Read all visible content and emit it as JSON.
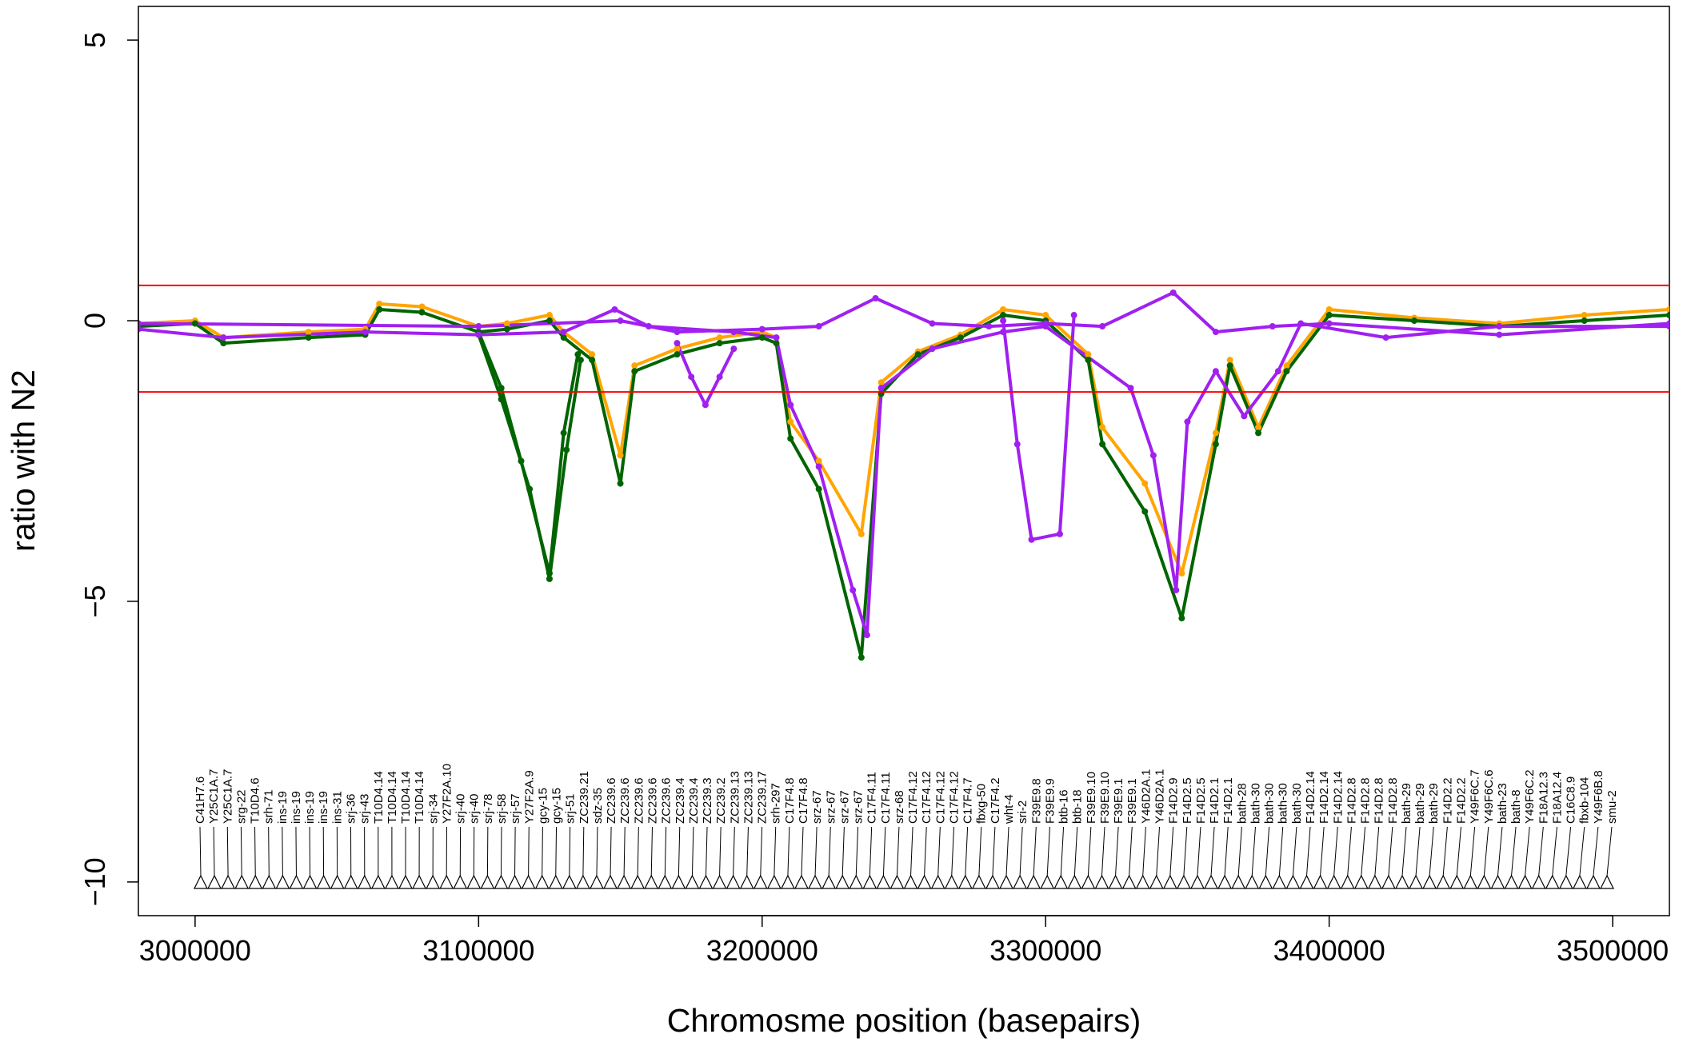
{
  "chart_data": {
    "type": "line",
    "xlabel": "Chromosme position (basepairs)",
    "ylabel": "ratio with N2",
    "xlim": [
      2980000,
      3520000
    ],
    "ylim": [
      -10.6,
      5.6
    ],
    "x_ticks": [
      3000000,
      3100000,
      3200000,
      3300000,
      3400000,
      3500000
    ],
    "x_tick_labels": [
      "3000000",
      "3100000",
      "3200000",
      "3300000",
      "3400000",
      "3500000"
    ],
    "y_ticks": [
      -10,
      -5,
      0,
      5
    ],
    "y_tick_labels": [
      "−10",
      "−5",
      "0",
      "5"
    ],
    "thresholds": [
      0.63,
      -1.27
    ],
    "threshold_color": "#ff0000",
    "colors": {
      "orange": "#ffa500",
      "green": "#006400",
      "purple": "#a020f0"
    },
    "series": [
      {
        "color": "#ffa500",
        "x": [
          2980000,
          3000000,
          3010000,
          3040000,
          3060000,
          3065000,
          3080000,
          3100000,
          3110000,
          3125000,
          3130000,
          3140000,
          3150000,
          3155000,
          3170000,
          3185000,
          3200000,
          3205000,
          3210000,
          3220000,
          3235000,
          3242000,
          3255000,
          3270000,
          3285000,
          3300000,
          3315000,
          3320000,
          3335000,
          3348000,
          3360000,
          3365000,
          3375000,
          3385000,
          3400000,
          3430000,
          3460000,
          3490000,
          3520000
        ],
        "y": [
          -0.05,
          0.0,
          -0.3,
          -0.2,
          -0.15,
          0.3,
          0.25,
          -0.1,
          -0.05,
          0.1,
          -0.2,
          -0.6,
          -2.4,
          -0.8,
          -0.5,
          -0.3,
          -0.2,
          -0.3,
          -1.8,
          -2.5,
          -3.8,
          -1.1,
          -0.55,
          -0.25,
          0.2,
          0.1,
          -0.6,
          -1.9,
          -2.9,
          -4.5,
          -2.0,
          -0.7,
          -1.9,
          -0.8,
          0.2,
          0.05,
          -0.05,
          0.1,
          0.2
        ]
      },
      {
        "color": "#006400",
        "x": [
          2980000,
          3000000,
          3010000,
          3040000,
          3060000,
          3065000,
          3080000,
          3100000,
          3110000,
          3125000,
          3130000,
          3140000,
          3150000,
          3155000,
          3170000,
          3185000,
          3200000,
          3205000,
          3210000,
          3220000,
          3235000,
          3242000,
          3255000,
          3270000,
          3285000,
          3300000,
          3315000,
          3320000,
          3335000,
          3348000,
          3360000,
          3365000,
          3375000,
          3385000,
          3400000,
          3430000,
          3460000,
          3490000,
          3520000
        ],
        "y": [
          -0.1,
          -0.05,
          -0.4,
          -0.3,
          -0.25,
          0.2,
          0.15,
          -0.2,
          -0.15,
          0.0,
          -0.3,
          -0.7,
          -2.9,
          -0.9,
          -0.6,
          -0.4,
          -0.3,
          -0.4,
          -2.1,
          -3.0,
          -6.0,
          -1.3,
          -0.6,
          -0.3,
          0.1,
          0.0,
          -0.7,
          -2.2,
          -3.4,
          -5.3,
          -2.2,
          -0.8,
          -2.0,
          -0.9,
          0.1,
          0.0,
          -0.1,
          0.0,
          0.1
        ]
      },
      {
        "color": "#006400",
        "x": [
          3100000,
          3108000,
          3115000,
          3125000,
          3130000,
          3135000
        ],
        "y": [
          -0.2,
          -1.2,
          -2.5,
          -4.5,
          -2.0,
          -0.6
        ]
      },
      {
        "color": "#006400",
        "x": [
          3100000,
          3108000,
          3118000,
          3125000,
          3131000,
          3136000
        ],
        "y": [
          -0.25,
          -1.4,
          -3.0,
          -4.6,
          -2.3,
          -0.7
        ]
      },
      {
        "color": "#a020f0",
        "x": [
          2980000,
          3010000,
          3060000,
          3100000,
          3130000,
          3148000,
          3160000,
          3190000,
          3205000,
          3210000,
          3220000,
          3232000,
          3237000,
          3242000,
          3260000,
          3285000,
          3300000,
          3330000,
          3338000,
          3346000,
          3350000,
          3360000,
          3370000,
          3382000,
          3390000,
          3420000,
          3460000,
          3520000
        ],
        "y": [
          -0.15,
          -0.3,
          -0.2,
          -0.25,
          -0.2,
          0.2,
          -0.1,
          -0.2,
          -0.3,
          -1.5,
          -2.6,
          -4.8,
          -5.6,
          -1.2,
          -0.5,
          -0.2,
          -0.1,
          -1.2,
          -2.4,
          -4.8,
          -1.8,
          -0.9,
          -1.7,
          -0.9,
          -0.05,
          -0.3,
          -0.1,
          -0.1
        ]
      },
      {
        "color": "#a020f0",
        "x": [
          2980000,
          3100000,
          3150000,
          3170000,
          3200000,
          3220000,
          3240000,
          3260000,
          3280000,
          3300000,
          3320000,
          3345000,
          3360000,
          3380000,
          3400000,
          3460000,
          3520000
        ],
        "y": [
          -0.05,
          -0.1,
          0.0,
          -0.2,
          -0.15,
          -0.1,
          0.4,
          -0.05,
          -0.1,
          -0.05,
          -0.1,
          0.5,
          -0.2,
          -0.1,
          -0.05,
          -0.25,
          -0.05
        ]
      },
      {
        "color": "#a020f0",
        "x": [
          3170000,
          3175000,
          3180000,
          3185000,
          3190000
        ],
        "y": [
          -0.4,
          -1.0,
          -1.5,
          -1.0,
          -0.5
        ]
      },
      {
        "color": "#a020f0",
        "x": [
          3285000,
          3290000,
          3295000,
          3305000,
          3310000
        ],
        "y": [
          0.0,
          -2.2,
          -3.9,
          -3.8,
          0.1
        ]
      }
    ],
    "points_description_note": "",
    "genes": [
      "C41H7.6",
      "Y25C1A.7",
      "Y25C1A.7",
      "srg-22",
      "T10D4.6",
      "srh-71",
      "ins-19",
      "ins-19",
      "ins-19",
      "ins-19",
      "ins-31",
      "srj-36",
      "srj-43",
      "T10D4.14",
      "T10D4.14",
      "T10D4.14",
      "T10D4.14",
      "srj-34",
      "Y27F2A.10",
      "srj-40",
      "srj-40",
      "srj-78",
      "srj-58",
      "srj-57",
      "Y27F2A.9",
      "gcy-15",
      "gcy-15",
      "srj-51",
      "ZC239.21",
      "sdz-35",
      "ZC239.6",
      "ZC239.6",
      "ZC239.6",
      "ZC239.6",
      "ZC239.6",
      "ZC239.4",
      "ZC239.4",
      "ZC239.3",
      "ZC239.2",
      "ZC239.13",
      "ZC239.13",
      "ZC239.17",
      "srh-297",
      "C17F4.8",
      "C17F4.8",
      "srz-67",
      "srz-67",
      "srz-67",
      "srz-67",
      "C17F4.11",
      "C17F4.11",
      "srz-68",
      "C17F4.12",
      "C17F4.12",
      "C17F4.12",
      "C17F4.12",
      "C17F4.7",
      "fbxg-50",
      "C17F4.2",
      "wht-4",
      "sri-2",
      "F39E9.8",
      "F39E9.9",
      "btb-16",
      "btb-18",
      "F39E9.10",
      "F39E9.10",
      "F39E9.1",
      "F39E9.1",
      "Y46D2A.1",
      "Y46D2A.1",
      "F14D2.9",
      "F14D2.5",
      "F14D2.5",
      "F14D2.1",
      "F14D2.1",
      "bath-28",
      "bath-30",
      "bath-30",
      "bath-30",
      "bath-30",
      "F14D2.14",
      "F14D2.14",
      "F14D2.14",
      "F14D2.8",
      "F14D2.8",
      "F14D2.8",
      "F14D2.8",
      "bath-29",
      "bath-29",
      "bath-29",
      "F14D2.2",
      "F14D2.2",
      "Y49F6C.7",
      "Y49F6C.6",
      "bath-23",
      "bath-8",
      "Y49F6C.2",
      "F18A12.3",
      "F18A12.4",
      "C16C8.9",
      "fbxb-104",
      "Y49F6B.8",
      "smu-2"
    ]
  }
}
